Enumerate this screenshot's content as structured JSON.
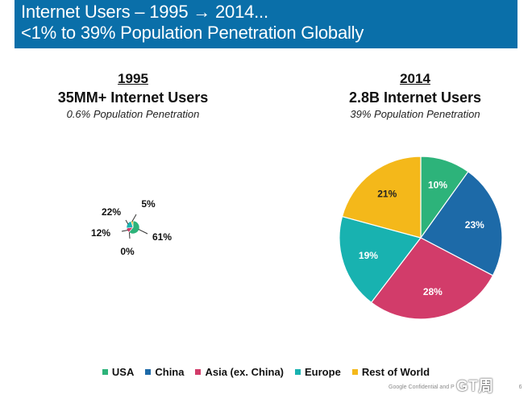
{
  "header": {
    "line1": "Internet Users – 1995 → 2014...",
    "line2": "<1% to 39% Population Penetration Globally"
  },
  "panels": {
    "left": {
      "year": "1995",
      "users": "35MM+ Internet Users",
      "penetration": "0.6% Population Penetration"
    },
    "right": {
      "year": "2014",
      "users": "2.8B Internet Users",
      "penetration": "39% Population Penetration"
    }
  },
  "legend": [
    {
      "label": "USA",
      "color": "#2db37a"
    },
    {
      "label": "China",
      "color": "#1d6aa8"
    },
    {
      "label": "Asia (ex. China)",
      "color": "#d23c6a"
    },
    {
      "label": "Europe",
      "color": "#18b2b0"
    },
    {
      "label": "Rest of World",
      "color": "#f4b81a"
    }
  ],
  "chart_data": [
    {
      "type": "pie",
      "title": "1995",
      "categories": [
        "USA",
        "China",
        "Asia (ex. China)",
        "Europe",
        "Rest of World"
      ],
      "values": [
        61,
        0,
        12,
        22,
        5
      ],
      "labels": [
        "61%",
        "0%",
        "12%",
        "22%",
        "5%"
      ]
    },
    {
      "type": "pie",
      "title": "2014",
      "categories": [
        "USA",
        "China",
        "Asia (ex. China)",
        "Europe",
        "Rest of World"
      ],
      "values": [
        10,
        23,
        28,
        19,
        21
      ],
      "labels": [
        "10%",
        "23%",
        "28%",
        "19%",
        "21%"
      ]
    }
  ],
  "footer": {
    "confidential": "Google Confidential and P",
    "page_number": "6",
    "watermark": "GT周"
  }
}
